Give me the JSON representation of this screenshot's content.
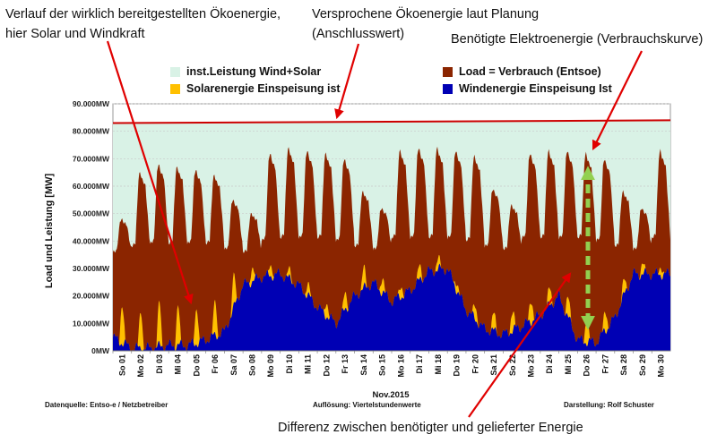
{
  "annotations": {
    "top_left_1": "Verlauf der wirklich bereitgestellten Ökoenergie,",
    "top_left_2": "hier Solar und Windkraft",
    "top_mid_1": "Versprochene Ökoenergie laut Planung",
    "top_mid_2": "(Anschlusswert)",
    "top_right": "Benötigte Elektroenergie (Verbrauchskurve)",
    "bottom": "Differenz zwischen benötigter und gelieferter Energie"
  },
  "footer": {
    "source": "Datenquelle:  Entso-e  / Netzbetreiber",
    "resolution": "Auflösung: Viertelstundenwerte",
    "author": "Darstellung: Rolf Schuster"
  },
  "colors": {
    "installed": "#d9f2e6",
    "installed_line": "#cc0000",
    "load": "#8b2500",
    "solar": "#ffc000",
    "wind": "#0000b4",
    "arrow_red": "#e00000",
    "arrow_green": "#92d050"
  },
  "chart_data": {
    "type": "area",
    "title": "",
    "xlabel": "Nov.2015",
    "ylabel": "Load und Leistung  [MW]",
    "ylim": [
      0,
      90000
    ],
    "yticks": [
      "0MW",
      "10.000MW",
      "20.000MW",
      "30.000MW",
      "40.000MW",
      "50.000MW",
      "60.000MW",
      "70.000MW",
      "80.000MW",
      "90.000MW"
    ],
    "categories": [
      "So 01",
      "Mo 02",
      "Di 03",
      "Mi 04",
      "Do 05",
      "Fr 06",
      "Sa 07",
      "So 08",
      "Mo 09",
      "Di 10",
      "Mi 11",
      "Do 12",
      "Fr 13",
      "Sa 14",
      "So 15",
      "Mo 16",
      "Di 17",
      "Mi 18",
      "Do 19",
      "Fr 20",
      "Sa 21",
      "So 22",
      "Mo 23",
      "Di 24",
      "Mi 25",
      "Do 26",
      "Fr 27",
      "Sa 28",
      "So 29",
      "Mo 30"
    ],
    "legend": [
      "inst.Leistung Wind+Solar",
      "Load =  Verbrauch (Entsoe)",
      "Solarenergie Einspeisung ist",
      "Windenergie Einspeisung Ist"
    ],
    "series": [
      {
        "name": "inst.Leistung Wind+Solar",
        "start": 83000,
        "end": 84000
      },
      {
        "name": "Load =  Verbrauch (Entsoe)",
        "unit": "MW",
        "daily_peak": [
          48000,
          65000,
          68000,
          67000,
          66000,
          64000,
          55000,
          50000,
          72000,
          74000,
          73000,
          72000,
          70000,
          58000,
          52000,
          73000,
          74000,
          74000,
          73000,
          71000,
          59000,
          53000,
          72000,
          73000,
          73000,
          72000,
          70000,
          58000,
          52000,
          73000
        ],
        "daily_min": [
          36000,
          38000,
          39000,
          39000,
          39000,
          39000,
          37000,
          36000,
          40000,
          41000,
          41000,
          41000,
          40000,
          38000,
          37000,
          41000,
          41000,
          41000,
          41000,
          40000,
          38000,
          37000,
          41000,
          41000,
          41000,
          41000,
          40000,
          38000,
          37000,
          41000
        ]
      },
      {
        "name": "Solarenergie Einspeisung ist",
        "unit": "MW",
        "daily_peak": [
          14000,
          13000,
          15000,
          14000,
          13000,
          12000,
          11000,
          5000,
          4000,
          3000,
          4000,
          5000,
          6000,
          7000,
          5000,
          4000,
          5000,
          4000,
          3000,
          5000,
          6000,
          7000,
          8000,
          6000,
          7000,
          8000,
          7000,
          5000,
          4000,
          3000
        ]
      },
      {
        "name": "Windenergie Einspeisung Ist",
        "unit": "MW",
        "daily_value": [
          5000,
          1000,
          1000,
          2000,
          2000,
          4000,
          7000,
          24000,
          27000,
          28000,
          24000,
          16000,
          10000,
          20000,
          25000,
          18000,
          22000,
          29000,
          30000,
          15000,
          8000,
          6000,
          9000,
          13000,
          20000,
          4000,
          3000,
          12000,
          28000,
          28000
        ]
      }
    ]
  }
}
